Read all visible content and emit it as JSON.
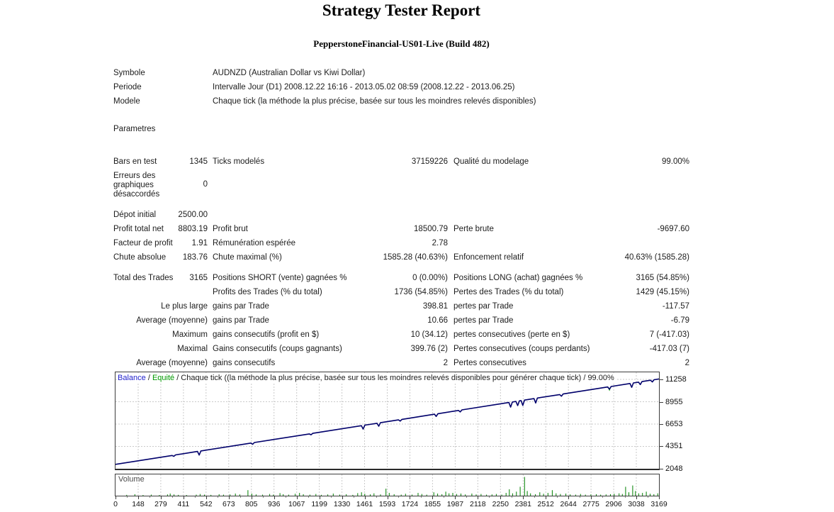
{
  "report": {
    "title": "Strategy Tester Report",
    "subtitle": "PepperstoneFinancial-US01-Live (Build 482)"
  },
  "info": {
    "rows": [
      {
        "label": "Symbole",
        "value": "AUDNZD (Australian Dollar vs Kiwi Dollar)"
      },
      {
        "label": "Periode",
        "value": "Intervalle Jour (D1) 2008.12.22 16:16 - 2013.05.02 08:59 (2008.12.22 - 2013.06.25)"
      },
      {
        "label": "Modele",
        "value": "Chaque tick (la méthode la plus précise, basée sur tous les moindres relevés disponibles)"
      },
      {
        "label": "Parametres",
        "value": ""
      }
    ]
  },
  "stats": {
    "rows": [
      {
        "l1": "Bars en test",
        "v1": "1345",
        "l2": "Ticks modelés",
        "v2": "37159226",
        "l3": "Qualité du modelage",
        "v3": "99.00%",
        "align1": "left",
        "tall": false
      },
      {
        "l1": "Erreurs des graphiques désaccordés",
        "v1": "0",
        "l2": "",
        "v2": "",
        "l3": "",
        "v3": "",
        "align1": "left",
        "tall": true
      },
      {
        "l1": "Dépot initial",
        "v1": "2500.00",
        "l2": "",
        "v2": "",
        "l3": "",
        "v3": "",
        "align1": "left",
        "tall": false
      },
      {
        "l1": "Profit total net",
        "v1": "8803.19",
        "l2": "Profit brut",
        "v2": "18500.79",
        "l3": "Perte brute",
        "v3": "-9697.60",
        "align1": "left",
        "tall": false
      },
      {
        "l1": "Facteur de profit",
        "v1": "1.91",
        "l2": "Rémunération espérée",
        "v2": "2.78",
        "l3": "",
        "v3": "",
        "align1": "left",
        "tall": false
      },
      {
        "l1": "Chute absolue",
        "v1": "183.76",
        "l2": "Chute maximal (%)",
        "v2": "1585.28 (40.63%)",
        "l3": "Enfoncement relatif",
        "v3": "40.63% (1585.28)",
        "align1": "left",
        "tall": false
      },
      {
        "l1": "Total des Trades",
        "v1": "3165",
        "l2": "Positions SHORT (vente) gagnées %",
        "v2": "0 (0.00%)",
        "l3": "Positions LONG (achat) gagnées %",
        "v3": "3165 (54.85%)",
        "align1": "left",
        "tall": false
      },
      {
        "l1": "",
        "v1": "",
        "l2": "Profits des Trades (% du total)",
        "v2": "1736 (54.85%)",
        "l3": "Pertes des Trades (% du total)",
        "v3": "1429 (45.15%)",
        "align1": "left",
        "tall": false
      },
      {
        "l1": "Le plus large",
        "v1": "",
        "l2": "gains par Trade",
        "v2": "398.81",
        "l3": "pertes par Trade",
        "v3": "-117.57",
        "align1": "right",
        "tall": false
      },
      {
        "l1": "Average (moyenne)",
        "v1": "",
        "l2": "gains par Trade",
        "v2": "10.66",
        "l3": "pertes par Trade",
        "v3": "-6.79",
        "align1": "right",
        "tall": false
      },
      {
        "l1": "Maximum",
        "v1": "",
        "l2": "gains consecutifs (profit en $)",
        "v2": "10 (34.12)",
        "l3": "pertes consecutives (perte en $)",
        "v3": "7 (-417.03)",
        "align1": "right",
        "tall": false
      },
      {
        "l1": "Maximal",
        "v1": "",
        "l2": "Gains consecutifs (coups gagnants)",
        "v2": "399.76 (2)",
        "l3": "Pertes consecutives (coups perdants)",
        "v3": "-417.03 (7)",
        "align1": "right",
        "tall": false
      },
      {
        "l1": "Average (moyenne)",
        "v1": "",
        "l2": "gains consecutifs",
        "v2": "2",
        "l3": "Pertes consecutives",
        "v3": "2",
        "align1": "right",
        "tall": false
      }
    ]
  },
  "chart_data": {
    "type": "line",
    "legend": {
      "balance": "Balance",
      "sep1": " / ",
      "equity": "Equité",
      "rest": " / Chaque tick ((la méthode la plus précise, basée sur tous les moindres relevés disponibles pour générer chaque tick) / 99.00%"
    },
    "volume_label": "Volume",
    "x_range": [
      0,
      3169
    ],
    "y_range": [
      2048,
      11258
    ],
    "y_ticks": [
      11258,
      8955,
      6653,
      4351,
      2048
    ],
    "x_ticks": [
      0,
      148,
      279,
      411,
      542,
      673,
      805,
      936,
      1067,
      1199,
      1330,
      1461,
      1593,
      1724,
      1855,
      1987,
      2118,
      2250,
      2381,
      2512,
      2644,
      2775,
      2906,
      3038,
      3169
    ],
    "grid_y_values": [
      4351,
      6653,
      8955,
      11258
    ],
    "balance_series": [
      [
        0,
        2500
      ],
      [
        330,
        3417
      ],
      [
        340,
        3325
      ],
      [
        350,
        3472
      ],
      [
        478,
        3828
      ],
      [
        488,
        3456
      ],
      [
        498,
        3883
      ],
      [
        790,
        4695
      ],
      [
        800,
        4572
      ],
      [
        810,
        4750
      ],
      [
        1130,
        5639
      ],
      [
        1140,
        5547
      ],
      [
        1150,
        5695
      ],
      [
        1434,
        6483
      ],
      [
        1444,
        6131
      ],
      [
        1454,
        6540
      ],
      [
        1525,
        6737
      ],
      [
        1535,
        6434
      ],
      [
        1545,
        6792
      ],
      [
        1650,
        7084
      ],
      [
        1660,
        6962
      ],
      [
        1670,
        7139
      ],
      [
        1860,
        7667
      ],
      [
        1870,
        7445
      ],
      [
        1880,
        7723
      ],
      [
        2000,
        8056
      ],
      [
        2010,
        7904
      ],
      [
        2020,
        8112
      ],
      [
        2294,
        8873
      ],
      [
        2304,
        8400
      ],
      [
        2314,
        8929
      ],
      [
        2335,
        8987
      ],
      [
        2345,
        8564
      ],
      [
        2355,
        9042
      ],
      [
        2365,
        9070
      ],
      [
        2375,
        8578
      ],
      [
        2385,
        9127
      ],
      [
        2440,
        9278
      ],
      [
        2450,
        8826
      ],
      [
        2460,
        9334
      ],
      [
        2590,
        9695
      ],
      [
        2600,
        9523
      ],
      [
        2610,
        9751
      ],
      [
        2870,
        10473
      ],
      [
        2880,
        10251
      ],
      [
        2890,
        10529
      ],
      [
        3000,
        10834
      ],
      [
        3010,
        10442
      ],
      [
        3020,
        10890
      ],
      [
        3050,
        10973
      ],
      [
        3060,
        10723
      ],
      [
        3070,
        11031
      ],
      [
        3120,
        11170
      ],
      [
        3130,
        10995
      ],
      [
        3140,
        11223
      ],
      [
        3169,
        11303
      ]
    ],
    "equity_series": [
      [
        2872,
        10480
      ],
      [
        2880,
        10150
      ],
      [
        2888,
        10500
      ]
    ],
    "volume_bars": [
      [
        0.02,
        0.04
      ],
      [
        0.035,
        0.07
      ],
      [
        0.05,
        0.03
      ],
      [
        0.065,
        0.05
      ],
      [
        0.08,
        0.03
      ],
      [
        0.095,
        0.06
      ],
      [
        0.1,
        0.1
      ],
      [
        0.107,
        0.06
      ],
      [
        0.115,
        0.04
      ],
      [
        0.13,
        0.03
      ],
      [
        0.148,
        0.05
      ],
      [
        0.155,
        0.08
      ],
      [
        0.163,
        0.05
      ],
      [
        0.175,
        0.04
      ],
      [
        0.19,
        0.07
      ],
      [
        0.198,
        0.05
      ],
      [
        0.21,
        0.06
      ],
      [
        0.22,
        0.1
      ],
      [
        0.228,
        0.06
      ],
      [
        0.243,
        0.26
      ],
      [
        0.25,
        0.1
      ],
      [
        0.258,
        0.06
      ],
      [
        0.27,
        0.05
      ],
      [
        0.283,
        0.08
      ],
      [
        0.29,
        0.05
      ],
      [
        0.302,
        0.12
      ],
      [
        0.308,
        0.07
      ],
      [
        0.318,
        0.05
      ],
      [
        0.33,
        0.09
      ],
      [
        0.338,
        0.13
      ],
      [
        0.345,
        0.07
      ],
      [
        0.357,
        0.05
      ],
      [
        0.368,
        0.08
      ],
      [
        0.378,
        0.04
      ],
      [
        0.39,
        0.06
      ],
      [
        0.4,
        0.1
      ],
      [
        0.412,
        0.05
      ],
      [
        0.424,
        0.07
      ],
      [
        0.436,
        0.04
      ],
      [
        0.445,
        0.12
      ],
      [
        0.452,
        0.16
      ],
      [
        0.458,
        0.09
      ],
      [
        0.468,
        0.06
      ],
      [
        0.475,
        0.11
      ],
      [
        0.487,
        0.06
      ],
      [
        0.497,
        0.33
      ],
      [
        0.503,
        0.13
      ],
      [
        0.512,
        0.07
      ],
      [
        0.525,
        0.05
      ],
      [
        0.533,
        0.09
      ],
      [
        0.545,
        0.05
      ],
      [
        0.556,
        0.13
      ],
      [
        0.563,
        0.08
      ],
      [
        0.572,
        0.05
      ],
      [
        0.585,
        0.16
      ],
      [
        0.592,
        0.1
      ],
      [
        0.6,
        0.07
      ],
      [
        0.607,
        0.19
      ],
      [
        0.613,
        0.11
      ],
      [
        0.62,
        0.13
      ],
      [
        0.627,
        0.08
      ],
      [
        0.635,
        0.1
      ],
      [
        0.643,
        0.06
      ],
      [
        0.655,
        0.1
      ],
      [
        0.663,
        0.06
      ],
      [
        0.672,
        0.08
      ],
      [
        0.682,
        0.05
      ],
      [
        0.692,
        0.06
      ],
      [
        0.7,
        0.08
      ],
      [
        0.71,
        0.05
      ],
      [
        0.718,
        0.13
      ],
      [
        0.724,
        0.3
      ],
      [
        0.73,
        0.11
      ],
      [
        0.737,
        0.19
      ],
      [
        0.744,
        0.42
      ],
      [
        0.752,
        0.88
      ],
      [
        0.757,
        0.22
      ],
      [
        0.763,
        0.11
      ],
      [
        0.772,
        0.07
      ],
      [
        0.78,
        0.16
      ],
      [
        0.787,
        0.09
      ],
      [
        0.795,
        0.13
      ],
      [
        0.803,
        0.26
      ],
      [
        0.81,
        0.11
      ],
      [
        0.818,
        0.08
      ],
      [
        0.828,
        0.1
      ],
      [
        0.836,
        0.06
      ],
      [
        0.846,
        0.05
      ],
      [
        0.855,
        0.08
      ],
      [
        0.864,
        0.05
      ],
      [
        0.874,
        0.06
      ],
      [
        0.884,
        0.07
      ],
      [
        0.892,
        0.05
      ],
      [
        0.902,
        0.06
      ],
      [
        0.91,
        0.07
      ],
      [
        0.917,
        0.09
      ],
      [
        0.926,
        0.11
      ],
      [
        0.932,
        0.08
      ],
      [
        0.938,
        0.42
      ],
      [
        0.944,
        0.16
      ],
      [
        0.951,
        0.48
      ],
      [
        0.956,
        0.22
      ],
      [
        0.962,
        0.11
      ],
      [
        0.969,
        0.13
      ],
      [
        0.976,
        0.19
      ],
      [
        0.983,
        0.09
      ],
      [
        0.99,
        0.07
      ],
      [
        0.997,
        0.11
      ]
    ],
    "colors": {
      "balance_line": "#00006b",
      "equity_line": "#009900",
      "legend_balance": "#2222cc",
      "legend_equity": "#009900",
      "volume_bar": "#008000",
      "grid": "#cacaca",
      "border": "#3c3c3c"
    }
  }
}
